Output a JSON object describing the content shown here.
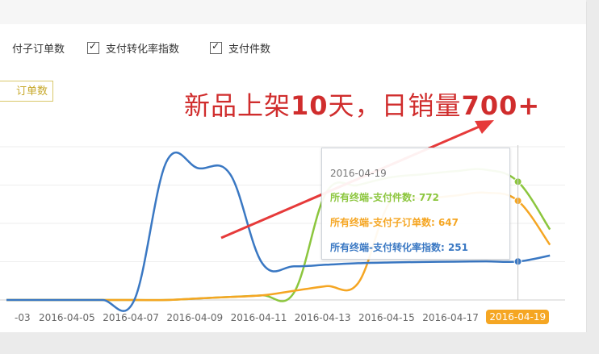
{
  "checkboxes": [
    {
      "label": "付子订单数",
      "checked": true
    },
    {
      "label": "支付转化率指数",
      "checked": true
    },
    {
      "label": "支付件数",
      "checked": true
    }
  ],
  "legend_button": "订单数",
  "annotation": {
    "prefix": "新品上架",
    "num1": "10",
    "mid": "天，日销量",
    "num2": "700+"
  },
  "tooltip": {
    "date": "2016-04-19",
    "rows": [
      {
        "label": "所有终端-支付件数: 772",
        "color": "#8cc63e"
      },
      {
        "label": "所有终端-支付子订单数: 647",
        "color": "#f5a623"
      },
      {
        "label": "所有终端-支付转化率指数: 251",
        "color": "#3a78c3"
      }
    ]
  },
  "colors": {
    "blue": "#3a78c3",
    "green": "#8cc63e",
    "orange": "#f5a623",
    "arrow": "#e63a3a"
  },
  "chart_data": {
    "type": "line",
    "x": [
      "2016-04-03",
      "2016-04-04",
      "2016-04-05",
      "2016-04-06",
      "2016-04-07",
      "2016-04-08",
      "2016-04-09",
      "2016-04-10",
      "2016-04-11",
      "2016-04-12",
      "2016-04-13",
      "2016-04-14",
      "2016-04-15",
      "2016-04-16",
      "2016-04-17",
      "2016-04-18",
      "2016-04-19",
      "2016-04-20"
    ],
    "xticklabels": [
      "-03",
      "2016-04-05",
      "2016-04-07",
      "2016-04-09",
      "2016-04-11",
      "2016-04-13",
      "2016-04-15",
      "2016-04-17",
      "2016-04-19"
    ],
    "active_x": "2016-04-19",
    "ylim": [
      0,
      1000
    ],
    "series": [
      {
        "name": "所有终端-支付件数",
        "color": "#8cc63e",
        "values": [
          0,
          0,
          0,
          0,
          0,
          0,
          10,
          20,
          30,
          50,
          700,
          750,
          800,
          820,
          840,
          850,
          772,
          460
        ]
      },
      {
        "name": "所有终端-支付子订单数",
        "color": "#f5a623",
        "values": [
          0,
          0,
          0,
          0,
          0,
          0,
          10,
          20,
          30,
          60,
          90,
          110,
          640,
          660,
          680,
          700,
          647,
          360
        ]
      },
      {
        "name": "所有终端-支付转化率指数",
        "color": "#3a78c3",
        "values": [
          0,
          0,
          0,
          0,
          0,
          900,
          860,
          820,
          240,
          220,
          230,
          240,
          245,
          248,
          250,
          252,
          251,
          290
        ]
      }
    ]
  }
}
